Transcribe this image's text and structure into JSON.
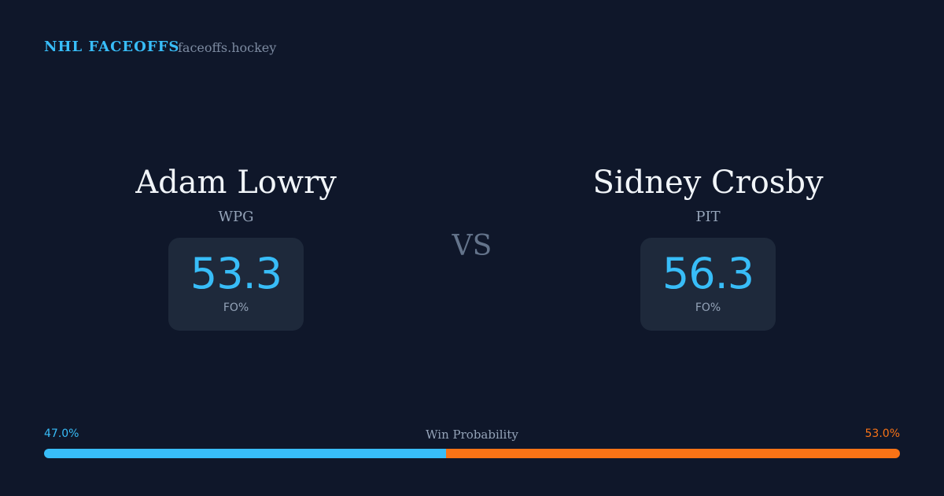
{
  "header": {
    "brand": "NHL FACEOFFS",
    "site": "faceoffs.hockey"
  },
  "vs": "VS",
  "players": [
    {
      "name": "Adam Lowry",
      "team": "WPG",
      "stat": 53.3,
      "stat_label": "FO%"
    },
    {
      "name": "Sidney Crosby",
      "team": "PIT",
      "stat": 56.3,
      "stat_label": "FO%"
    }
  ],
  "win_probability": {
    "label": "Win Probability",
    "left": {
      "value": 47.0,
      "label": "47.0%",
      "color": "#38bdf8"
    },
    "right": {
      "value": 53.0,
      "label": "53.0%",
      "color": "#f97316"
    }
  }
}
